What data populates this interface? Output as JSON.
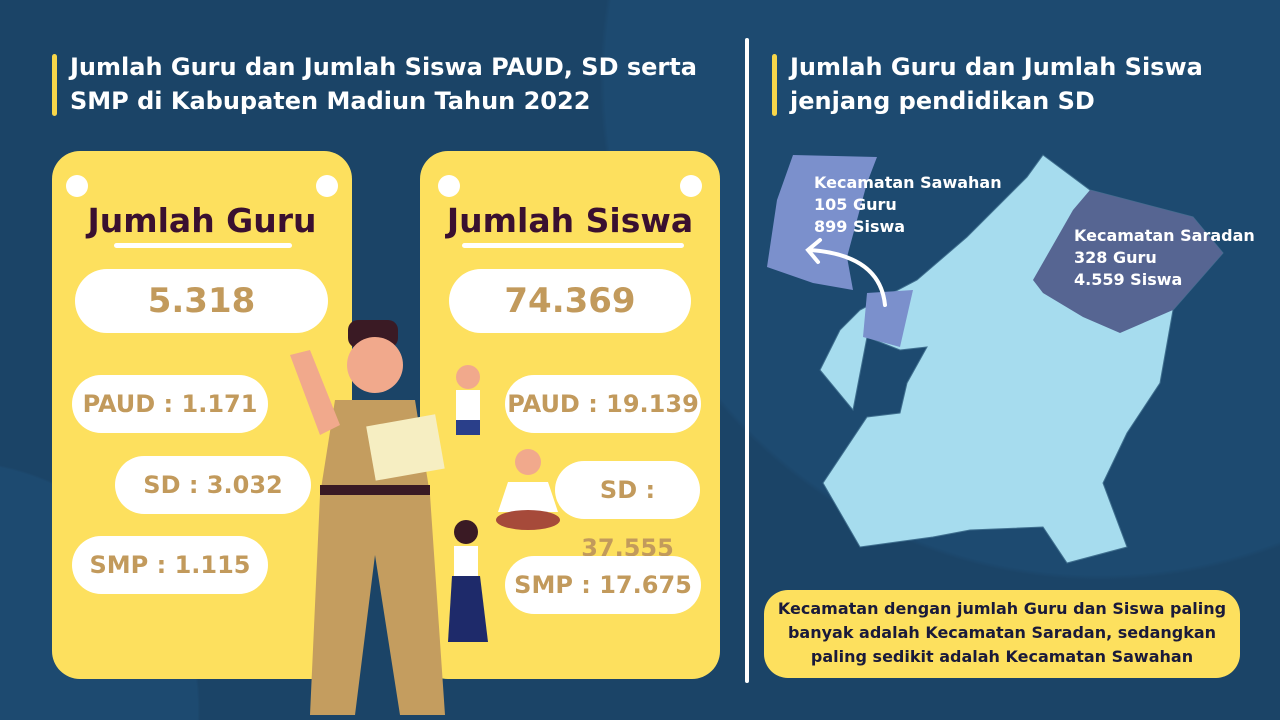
{
  "left": {
    "title": "Jumlah Guru dan Jumlah Siswa PAUD, SD serta SMP di Kabupaten Madiun Tahun 2022"
  },
  "guru": {
    "heading": "Jumlah Guru",
    "total": "5.318",
    "paud": "PAUD : 1.171",
    "sd": "SD : 3.032",
    "smp": "SMP : 1.115"
  },
  "siswa": {
    "heading": "Jumlah Siswa",
    "total": "74.369",
    "paud": "PAUD : 19.139",
    "sd": "SD : 37.555",
    "smp": "SMP : 17.675"
  },
  "right": {
    "title": "Jumlah Guru dan Jumlah Siswa jenjang pendidikan SD"
  },
  "map": {
    "sawahan": {
      "name": "Kecamatan Sawahan",
      "guru": "105 Guru",
      "siswa": "899 Siswa"
    },
    "saradan": {
      "name": "Kecamatan Saradan",
      "guru": "328 Guru",
      "siswa": "4.559 Siswa"
    }
  },
  "note": "Kecamatan dengan jumlah Guru dan Siswa paling banyak adalah Kecamatan Saradan, sedangkan paling sedikit adalah Kecamatan Sawahan",
  "colors": {
    "background": "#1b4467",
    "card": "#fde05e",
    "map": "#a6dcee",
    "sawahan": "#7b90cc",
    "saradan": "#566592",
    "value": "#c29a5c"
  }
}
